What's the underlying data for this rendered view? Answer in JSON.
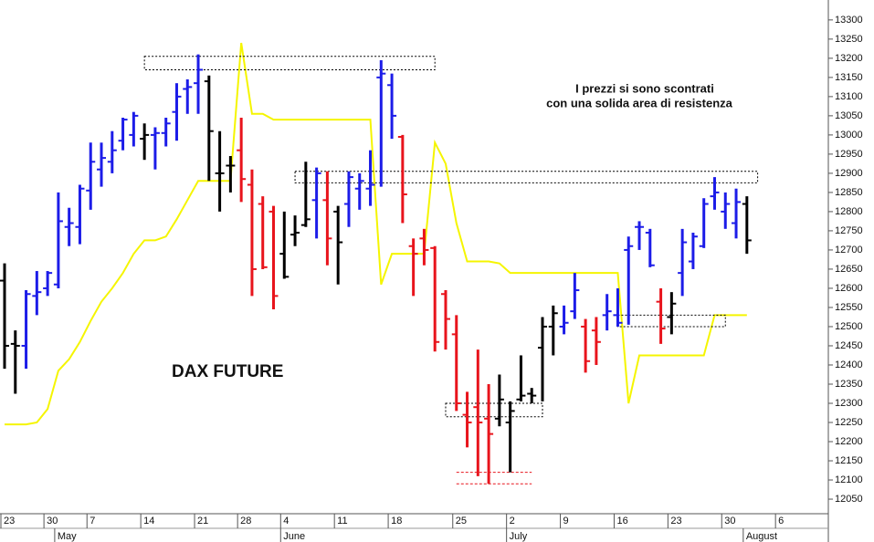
{
  "chart_data": {
    "type": "ohlc",
    "title": "DAX FUTURE",
    "annotations": [
      "I prezzi si sono scontrati",
      "con una solida area di resistenza"
    ],
    "categories": [
      "23",
      null,
      null,
      null,
      "30",
      null,
      null,
      null,
      "7",
      null,
      null,
      null,
      null,
      "14",
      null,
      null,
      null,
      null,
      "21",
      null,
      null,
      null,
      "28",
      null,
      null,
      null,
      "4",
      null,
      null,
      null,
      null,
      "11",
      null,
      null,
      null,
      null,
      "18",
      null,
      null,
      null,
      null,
      null,
      "25",
      null,
      null,
      null,
      null,
      "2",
      null,
      null,
      null,
      null,
      "9",
      null,
      null,
      null,
      null,
      "16",
      null,
      null,
      null,
      null,
      "23",
      null,
      null,
      null,
      null,
      "30",
      null,
      null,
      null,
      null,
      "6"
    ],
    "months": [
      {
        "label": "May",
        "at": 5
      },
      {
        "label": "June",
        "at": 26
      },
      {
        "label": "July",
        "at": 47
      },
      {
        "label": "August",
        "at": 69
      }
    ],
    "open": [
      12620,
      12455,
      12450,
      12580,
      12600,
      12610,
      12760,
      12760,
      12855,
      12910,
      12930,
      12985,
      13000,
      12990,
      13000,
      13005,
      13060,
      13120,
      13135,
      13140,
      12900,
      12920,
      12960,
      12870,
      12820,
      12800,
      12690,
      12740,
      12765,
      12830,
      12830,
      12800,
      12820,
      12860,
      12860,
      13150,
      13130,
      12995,
      12710,
      12730,
      12705,
      12585,
      12480,
      12270,
      12290,
      12260,
      12260,
      12250,
      12310,
      12325,
      12445,
      12500,
      12500,
      12540,
      12500,
      12490,
      12530,
      12530,
      12700,
      12760,
      12745,
      12565,
      12525,
      12640,
      12670,
      12710,
      12840,
      12800,
      12770,
      12820,
      null,
      null,
      null
    ],
    "high": [
      12665,
      12490,
      12595,
      12645,
      12645,
      12850,
      12810,
      12870,
      12980,
      12980,
      13010,
      13045,
      13060,
      13030,
      13020,
      13045,
      13135,
      13145,
      13210,
      13155,
      13010,
      12945,
      13045,
      12910,
      12840,
      12815,
      12800,
      12790,
      12930,
      12915,
      12905,
      12815,
      12905,
      12900,
      12960,
      13195,
      13160,
      13000,
      12730,
      12755,
      12710,
      12595,
      12530,
      12330,
      12440,
      12350,
      12375,
      12305,
      12425,
      12340,
      12525,
      12555,
      12555,
      12640,
      12520,
      12525,
      12585,
      12600,
      12735,
      12775,
      12755,
      12600,
      12590,
      12755,
      12745,
      12835,
      12890,
      12850,
      12860,
      12840,
      null,
      null,
      null
    ],
    "low": [
      12390,
      12325,
      12390,
      12530,
      12580,
      12600,
      12710,
      12715,
      12805,
      12865,
      12900,
      12960,
      12970,
      12935,
      12910,
      12970,
      12985,
      13055,
      13055,
      12880,
      12800,
      12850,
      12825,
      12580,
      12650,
      12545,
      12625,
      12710,
      12760,
      12730,
      12660,
      12610,
      12760,
      12805,
      12815,
      12865,
      12990,
      12770,
      12580,
      12660,
      12435,
      12440,
      12280,
      12185,
      12110,
      12090,
      12240,
      12120,
      12305,
      12300,
      12305,
      12425,
      12480,
      12520,
      12380,
      12400,
      12490,
      12500,
      12505,
      12700,
      12655,
      12455,
      12480,
      12580,
      12650,
      12705,
      12805,
      12755,
      12730,
      12690,
      null,
      null,
      null
    ],
    "close": [
      12450,
      12450,
      12585,
      12590,
      12640,
      12775,
      12770,
      12860,
      12930,
      12940,
      12960,
      13040,
      13050,
      13000,
      13005,
      13030,
      13100,
      13125,
      13170,
      13010,
      12900,
      12920,
      12885,
      12650,
      12655,
      12580,
      12630,
      12745,
      12780,
      12900,
      12730,
      12720,
      12890,
      12880,
      12870,
      13160,
      13050,
      12845,
      12690,
      12700,
      12460,
      12520,
      12300,
      12250,
      12250,
      12220,
      12310,
      12280,
      12320,
      12320,
      12500,
      12535,
      12510,
      12595,
      12410,
      12460,
      12540,
      12510,
      12710,
      12760,
      12660,
      12495,
      12560,
      12720,
      12735,
      12820,
      12850,
      12820,
      12825,
      12725,
      null,
      null,
      null
    ],
    "colors": [
      "#000000",
      "#000000",
      "#1c1ce8",
      "#1c1ce8",
      "#1c1ce8",
      "#1c1ce8",
      "#1c1ce8",
      "#1c1ce8",
      "#1c1ce8",
      "#1c1ce8",
      "#1c1ce8",
      "#1c1ce8",
      "#1c1ce8",
      "#000000",
      "#1c1ce8",
      "#1c1ce8",
      "#1c1ce8",
      "#1c1ce8",
      "#1c1ce8",
      "#000000",
      "#000000",
      "#000000",
      "#e8141c",
      "#e8141c",
      "#e8141c",
      "#e8141c",
      "#000000",
      "#000000",
      "#000000",
      "#1c1ce8",
      "#e8141c",
      "#000000",
      "#1c1ce8",
      "#1c1ce8",
      "#1c1ce8",
      "#1c1ce8",
      "#1c1ce8",
      "#e8141c",
      "#e8141c",
      "#e8141c",
      "#e8141c",
      "#e8141c",
      "#e8141c",
      "#e8141c",
      "#e8141c",
      "#e8141c",
      "#000000",
      "#000000",
      "#000000",
      "#000000",
      "#000000",
      "#000000",
      "#1c1ce8",
      "#1c1ce8",
      "#e8141c",
      "#e8141c",
      "#1c1ce8",
      "#1c1ce8",
      "#1c1ce8",
      "#1c1ce8",
      "#1c1ce8",
      "#e8141c",
      "#000000",
      "#1c1ce8",
      "#1c1ce8",
      "#1c1ce8",
      "#1c1ce8",
      "#1c1ce8",
      "#1c1ce8",
      "#000000",
      null,
      null,
      null
    ],
    "line": {
      "color": "#f5f500",
      "values": [
        12245,
        12245,
        12245,
        12250,
        12285,
        12385,
        12415,
        12460,
        12515,
        12565,
        12600,
        12640,
        12690,
        12725,
        12725,
        12735,
        12780,
        12830,
        12880,
        12880,
        12880,
        12880,
        13240,
        13055,
        13055,
        13040,
        13040,
        13040,
        13040,
        13040,
        13040,
        13040,
        13040,
        13040,
        13040,
        12610,
        12690,
        12690,
        12690,
        12690,
        12980,
        12925,
        12770,
        12670,
        12670,
        12670,
        12665,
        12640,
        12640,
        12640,
        12640,
        12640,
        12640,
        12640,
        12640,
        12640,
        12640,
        12640,
        12300,
        12425,
        12425,
        12425,
        12425,
        12425,
        12425,
        12425,
        12530,
        12530,
        12530,
        12530,
        null,
        null,
        null
      ]
    },
    "zones": [
      {
        "ylim": [
          13170,
          13205
        ],
        "from": 13,
        "to": 40
      },
      {
        "ylim": [
          12875,
          12905
        ],
        "from": 27,
        "to": 70
      },
      {
        "ylim": [
          12265,
          12300
        ],
        "from": 41,
        "to": 50
      },
      {
        "ylim": [
          12500,
          12530
        ],
        "from": 57,
        "to": 67
      }
    ],
    "levels": [
      {
        "value": 12120,
        "from": 42,
        "to": 49,
        "color": "#e8141c"
      },
      {
        "value": 12090,
        "from": 42,
        "to": 49,
        "color": "#e8141c"
      }
    ],
    "ylim": [
      12012,
      13352
    ],
    "yticks": [
      12050,
      12100,
      12150,
      12200,
      12250,
      12300,
      12350,
      12400,
      12450,
      12500,
      12550,
      12600,
      12650,
      12700,
      12750,
      12800,
      12850,
      12900,
      12950,
      13000,
      13050,
      13100,
      13150,
      13200,
      13250,
      13300
    ],
    "grid": false
  }
}
